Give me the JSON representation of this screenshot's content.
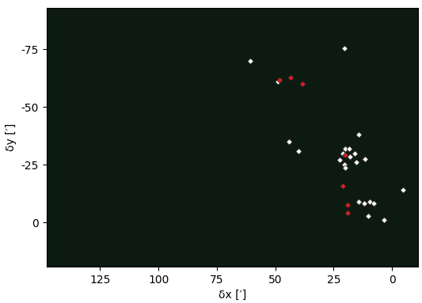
{
  "chart_data": {
    "type": "scatter",
    "x_label": "δx [′]",
    "y_label": "δy [′]",
    "xlim": [
      148,
      -11
    ],
    "ylim": [
      19,
      -93
    ],
    "xticks": [
      125,
      100,
      75,
      50,
      25,
      0
    ],
    "yticks": [
      -75,
      -50,
      -25,
      0
    ],
    "grid": false,
    "series": [
      {
        "color": "#ffffff",
        "marker": "diamond",
        "x": [
          60.7,
          20.4,
          49.0,
          44.2,
          40.2,
          14.4,
          20.1,
          18.4,
          21.1,
          16.1,
          18.1,
          22.5,
          20.4,
          15.4,
          11.7,
          20.1,
          14.4,
          12.1,
          9.4,
          8.0,
          10.1,
          3.4,
          -4.7
        ],
        "values": [
          -70.0,
          -75.4,
          -61.0,
          -35.0,
          -31.0,
          -38.0,
          -32.0,
          -32.0,
          -30.0,
          -30.0,
          -28.6,
          -27.3,
          -25.3,
          -26.0,
          -27.6,
          -23.9,
          -9.1,
          -8.4,
          -9.1,
          -8.4,
          -3.0,
          -1.3,
          -14.1
        ]
      },
      {
        "color": "#d62020",
        "marker": "diamond",
        "x": [
          48.3,
          43.6,
          38.5,
          20.1,
          21.1,
          19.1,
          19.1
        ],
        "values": [
          -61.6,
          -62.6,
          -60.0,
          -29.3,
          -15.8,
          -7.7,
          -4.4
        ]
      }
    ]
  }
}
